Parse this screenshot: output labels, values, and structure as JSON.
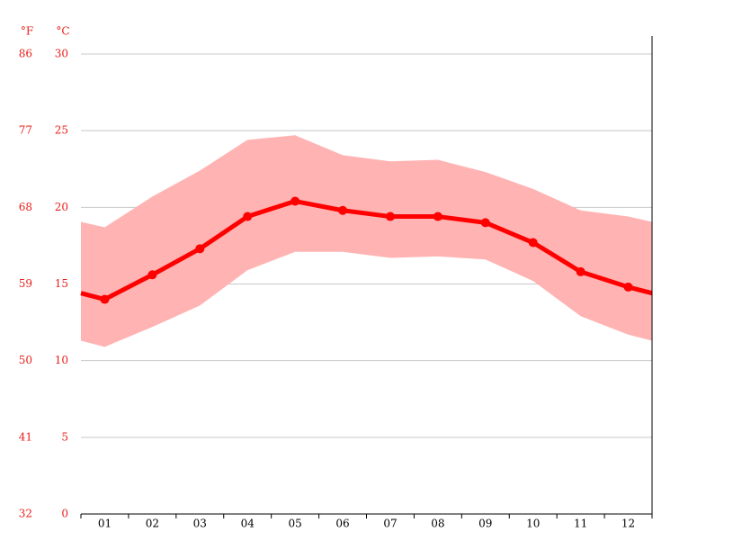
{
  "chart_data": {
    "type": "line",
    "y_label": "°C",
    "y2_label": "°F",
    "categories": [
      "01",
      "02",
      "03",
      "04",
      "05",
      "06",
      "07",
      "08",
      "09",
      "10",
      "11",
      "12"
    ],
    "range": {
      "color": "#ffb3b3",
      "high": [
        18.7,
        20.7,
        22.4,
        24.4,
        24.7,
        23.4,
        23.0,
        23.1,
        22.3,
        21.2,
        19.8,
        19.4
      ],
      "low": [
        10.9,
        12.2,
        13.6,
        15.9,
        17.1,
        17.1,
        16.7,
        16.8,
        16.6,
        15.2,
        12.9,
        11.7
      ]
    },
    "series": [
      {
        "color": "#ff0000",
        "values": [
          14.0,
          15.6,
          17.3,
          19.4,
          20.4,
          19.8,
          19.4,
          19.4,
          19.0,
          17.7,
          15.8,
          14.8
        ]
      }
    ],
    "ylim": [
      0,
      30
    ],
    "yticks": [
      0,
      5,
      10,
      15,
      20,
      25,
      30
    ],
    "y2lim": [
      32,
      86
    ],
    "y2ticks": [
      32,
      41,
      50,
      59,
      68,
      77,
      86
    ],
    "grid": true
  }
}
